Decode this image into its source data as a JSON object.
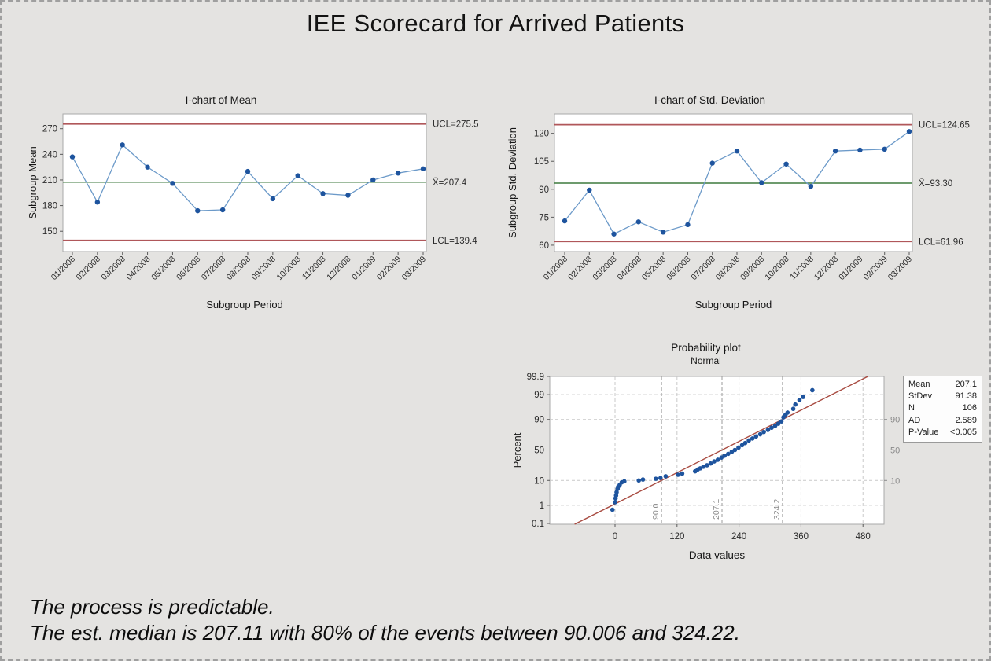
{
  "page": {
    "title": "IEE Scorecard for Arrived Patients",
    "footer_lines": [
      "The process is predictable.",
      "The est. median is 207.11 with 80% of the events between 90.006 and 324.22."
    ]
  },
  "colors": {
    "background": "#e4e3e1",
    "plot_bg": "#ffffff",
    "plot_border": "#a9a9a9",
    "point_blue": "#1e549e",
    "line_blue": "#6c9ac9",
    "control_red": "#b0575a",
    "center_green": "#3d7a3d",
    "fit_red": "#a84b41",
    "grid_gray": "#c9c9c9",
    "ref_gray": "#9b9b9b",
    "axis_text": "#2b2b2b",
    "muted_text": "#8a8a8a",
    "title_text": "#161616"
  },
  "chart_data": [
    {
      "id": "mean_ichart",
      "type": "line",
      "title": "I-chart of Mean",
      "ylabel": "Subgroup Mean",
      "xlabel": "Subgroup Period",
      "categories": [
        "01/2008",
        "02/2008",
        "03/2008",
        "04/2008",
        "05/2008",
        "06/2008",
        "07/2008",
        "08/2008",
        "09/2008",
        "10/2008",
        "11/2008",
        "12/2008",
        "01/2009",
        "02/2009",
        "03/2009"
      ],
      "values": [
        237,
        184,
        251,
        225,
        206,
        174,
        175,
        220,
        188,
        215,
        194,
        192,
        210,
        218,
        223
      ],
      "y_ticks": [
        270,
        240,
        210,
        180,
        150
      ],
      "ylim": [
        126.3,
        287.2
      ],
      "grid": false,
      "ucl": 275.5,
      "ucl_label": "UCL=275.5",
      "center": 207.4,
      "center_label": "X̄=207.4",
      "lcl": 139.4,
      "lcl_label": "LCL=139.4"
    },
    {
      "id": "std_ichart",
      "type": "line",
      "title": "I-chart of Std. Deviation",
      "ylabel": "Subgroup Std. Deviation",
      "xlabel": "Subgroup Period",
      "categories": [
        "01/2008",
        "02/2008",
        "03/2008",
        "04/2008",
        "05/2008",
        "06/2008",
        "07/2008",
        "08/2008",
        "09/2008",
        "10/2008",
        "11/2008",
        "12/2008",
        "01/2009",
        "02/2009",
        "03/2009"
      ],
      "values": [
        73,
        89.5,
        66,
        72.5,
        67,
        71,
        104,
        110.5,
        93.5,
        103.5,
        91.5,
        110.5,
        111,
        111.5,
        121
      ],
      "y_ticks": [
        120,
        105,
        90,
        75,
        60
      ],
      "ylim": [
        56.6,
        130.4
      ],
      "grid": false,
      "ucl": 124.65,
      "ucl_label": "UCL=124.65",
      "center": 93.3,
      "center_label": "X̄=93.30",
      "lcl": 61.96,
      "lcl_label": "LCL=61.96"
    },
    {
      "id": "prob_plot",
      "type": "scatter",
      "title": "Probability plot",
      "subtitle": "Normal",
      "ylabel": "Percent",
      "xlabel": "Data values",
      "x_ticks": [
        0,
        120,
        240,
        360,
        480
      ],
      "xlim": [
        -126,
        521
      ],
      "y_ticks_percent": [
        "99.9",
        "99",
        "90",
        "50",
        "10",
        "1",
        "0.1"
      ],
      "gridline_percents": [
        1,
        10,
        50,
        90,
        99
      ],
      "right_axis_labels": [
        "90",
        "50",
        "10"
      ],
      "right_axis_percents": [
        90,
        50,
        10
      ],
      "ref_lines": [
        {
          "value": 90.0,
          "label": "90.0"
        },
        {
          "value": 207.1,
          "label": "207.1"
        },
        {
          "value": 324.2,
          "label": "324.2"
        }
      ],
      "fit": {
        "mean": 207.1,
        "stdev": 91.38
      },
      "points": [
        [
          -5,
          0.6
        ],
        [
          0,
          1.4
        ],
        [
          1,
          2.1
        ],
        [
          2,
          2.8
        ],
        [
          3,
          3.8
        ],
        [
          5,
          5.1
        ],
        [
          6,
          6.1
        ],
        [
          9,
          7.1
        ],
        [
          13,
          8.7
        ],
        [
          18,
          9.4
        ],
        [
          46,
          10.0
        ],
        [
          54,
          10.7
        ],
        [
          79,
          11.3
        ],
        [
          88,
          11.9
        ],
        [
          98,
          13.5
        ],
        [
          122,
          14.9
        ],
        [
          130,
          16.0
        ],
        [
          155,
          18.5
        ],
        [
          160,
          20.5
        ],
        [
          165,
          22.0
        ],
        [
          171,
          24.0
        ],
        [
          178,
          26.0
        ],
        [
          185,
          28.5
        ],
        [
          192,
          31.5
        ],
        [
          199,
          34.0
        ],
        [
          206,
          37.5
        ],
        [
          212,
          40.5
        ],
        [
          219,
          43.5
        ],
        [
          226,
          47.0
        ],
        [
          232,
          50.0
        ],
        [
          239,
          54.0
        ],
        [
          246,
          58.0
        ],
        [
          252,
          61.5
        ],
        [
          259,
          65.5
        ],
        [
          266,
          68.5
        ],
        [
          273,
          71.5
        ],
        [
          281,
          74.5
        ],
        [
          288,
          77.5
        ],
        [
          296,
          80.0
        ],
        [
          303,
          82.5
        ],
        [
          310,
          84.5
        ],
        [
          316,
          86.5
        ],
        [
          322,
          88.5
        ],
        [
          326,
          91.5
        ],
        [
          330,
          93.0
        ],
        [
          334,
          94.2
        ],
        [
          345,
          95.8
        ],
        [
          349,
          97.2
        ],
        [
          357,
          98.2
        ],
        [
          364,
          98.7
        ],
        [
          382,
          99.4
        ]
      ],
      "legend": {
        "rows": [
          {
            "label": "Mean",
            "value": "207.1"
          },
          {
            "label": "StDev",
            "value": "91.38"
          },
          {
            "label": "N",
            "value": "106"
          },
          {
            "label": "AD",
            "value": "2.589"
          },
          {
            "label": "P-Value",
            "value": "<0.005"
          }
        ]
      }
    }
  ]
}
